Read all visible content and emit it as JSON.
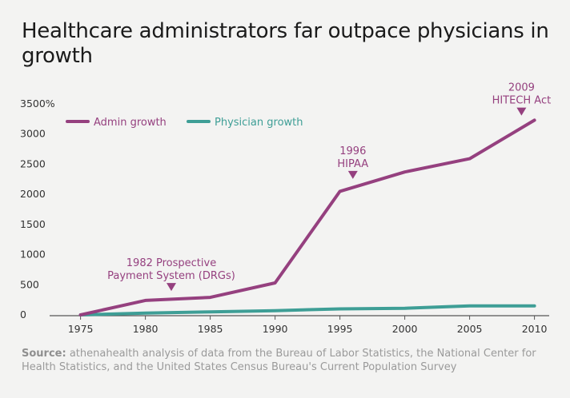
{
  "header": {
    "title": "Healthcare administrators far outpace physicians in growth"
  },
  "source": {
    "label": "Source:",
    "text": "athenahealth analysis of data from the Bureau of Labor Statistics, the National Center for Health Statistics, and the United States Census Bureau's Current Population Survey"
  },
  "chart_data": {
    "type": "line",
    "title": "Healthcare administrators far outpace physicians in growth",
    "x": [
      1975,
      1980,
      1985,
      1990,
      1995,
      2000,
      2005,
      2010
    ],
    "xlim": [
      1972,
      2012
    ],
    "ylim": [
      0,
      3500
    ],
    "y_ticks": [
      0,
      500,
      1000,
      1500,
      2000,
      2500,
      3000,
      3500
    ],
    "y_tick_labels": [
      "0",
      "500",
      "1000",
      "1500",
      "2000",
      "2500",
      "3000",
      "3500%"
    ],
    "grid": false,
    "legend_position": "top-left",
    "series": [
      {
        "name": "Admin growth",
        "color": "#95407f",
        "values": [
          0,
          240,
          290,
          530,
          2050,
          2370,
          2590,
          3230
        ]
      },
      {
        "name": "Physician growth",
        "color": "#3e9e96",
        "values": [
          0,
          30,
          50,
          70,
          100,
          110,
          150,
          150
        ]
      }
    ],
    "annotations": [
      {
        "lines": [
          "1982 Prospective",
          "Payment System (DRGs)"
        ],
        "x": 1982,
        "y": 290
      },
      {
        "lines": [
          "1996",
          "HIPAA"
        ],
        "x": 1996,
        "y": 2150
      },
      {
        "lines": [
          "2009",
          "HITECH Act"
        ],
        "x": 2009,
        "y": 3200
      }
    ],
    "annotation_color": "#95407f",
    "axis_color": "#555555"
  }
}
